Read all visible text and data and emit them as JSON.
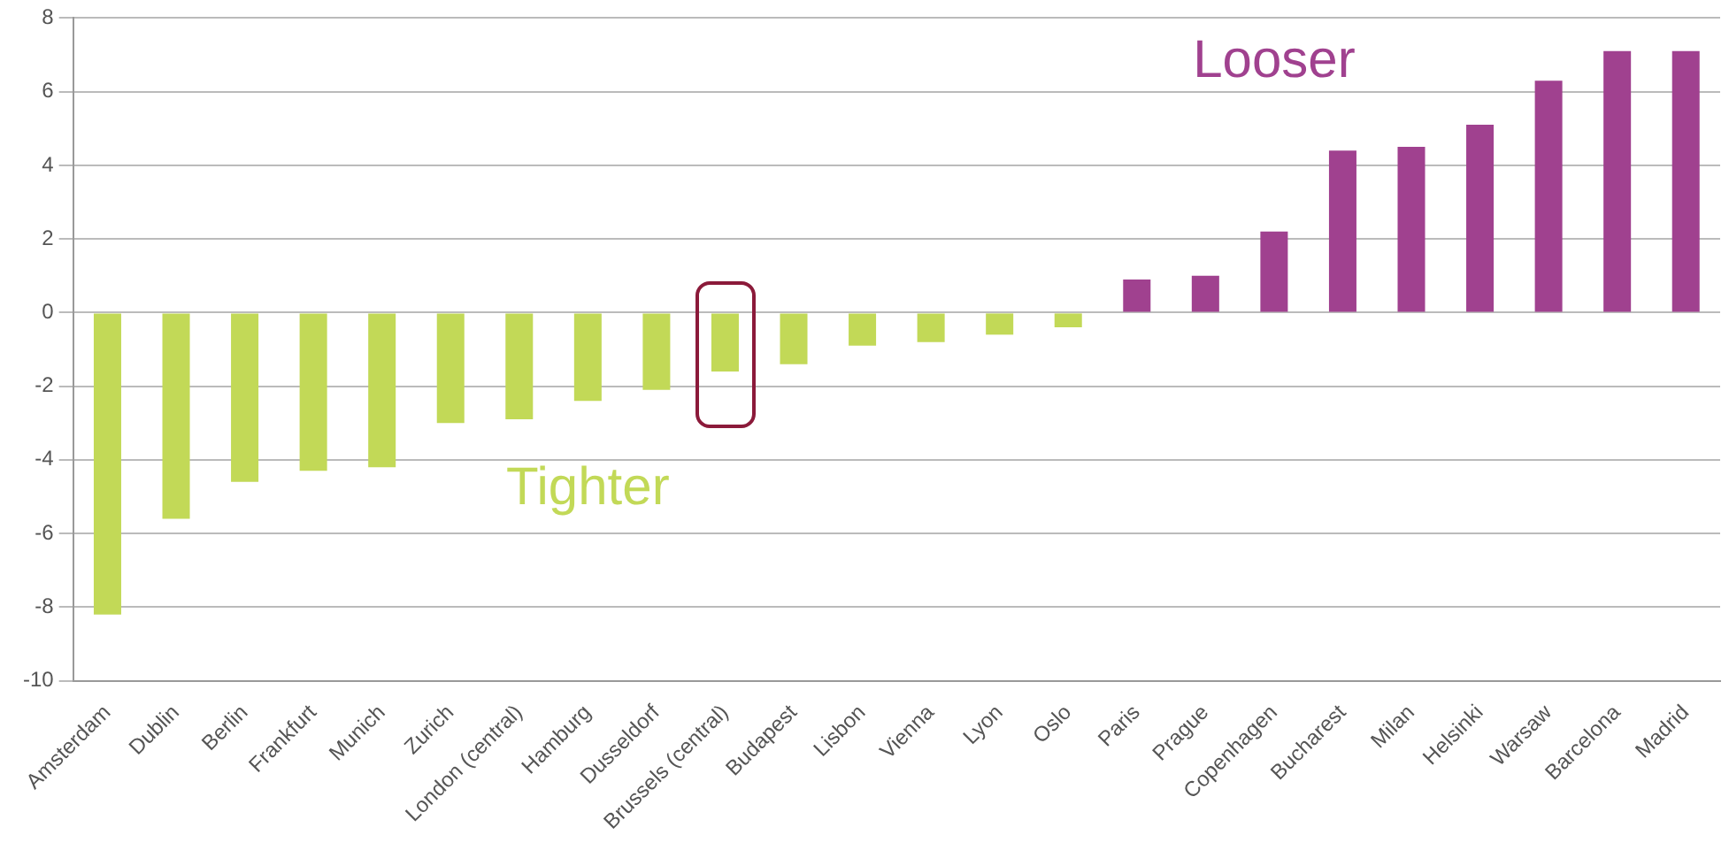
{
  "chart_data": {
    "type": "bar",
    "categories": [
      "Amsterdam",
      "Dublin",
      "Berlin",
      "Frankfurt",
      "Munich",
      "Zurich",
      "London (central)",
      "Hamburg",
      "Dusseldorf",
      "Brussels (central)",
      "Budapest",
      "Lisbon",
      "Vienna",
      "Lyon",
      "Oslo",
      "Paris",
      "Prague",
      "Copenhagen",
      "Bucharest",
      "Milan",
      "Helsinki",
      "Warsaw",
      "Barcelona",
      "Madrid"
    ],
    "values": [
      -8.2,
      -5.6,
      -4.6,
      -4.3,
      -4.2,
      -3.0,
      -2.9,
      -2.4,
      -2.1,
      -1.6,
      -1.4,
      -0.9,
      -0.8,
      -0.6,
      -0.4,
      0.9,
      1.0,
      2.2,
      4.4,
      4.5,
      5.1,
      6.3,
      7.1,
      7.1
    ],
    "colors": [
      "#c2d957",
      "#c2d957",
      "#c2d957",
      "#c2d957",
      "#c2d957",
      "#c2d957",
      "#c2d957",
      "#c2d957",
      "#c2d957",
      "#c2d957",
      "#c2d957",
      "#c2d957",
      "#c2d957",
      "#c2d957",
      "#c2d957",
      "#a0418f",
      "#a0418f",
      "#a0418f",
      "#a0418f",
      "#a0418f",
      "#a0418f",
      "#a0418f",
      "#a0418f",
      "#a0418f"
    ],
    "ylim": [
      -10,
      8
    ],
    "yticks": [
      -10,
      -8,
      -6,
      -4,
      -2,
      0,
      2,
      4,
      6,
      8
    ],
    "grid": "y",
    "annotations": [
      "Tighter",
      "Looser"
    ]
  }
}
